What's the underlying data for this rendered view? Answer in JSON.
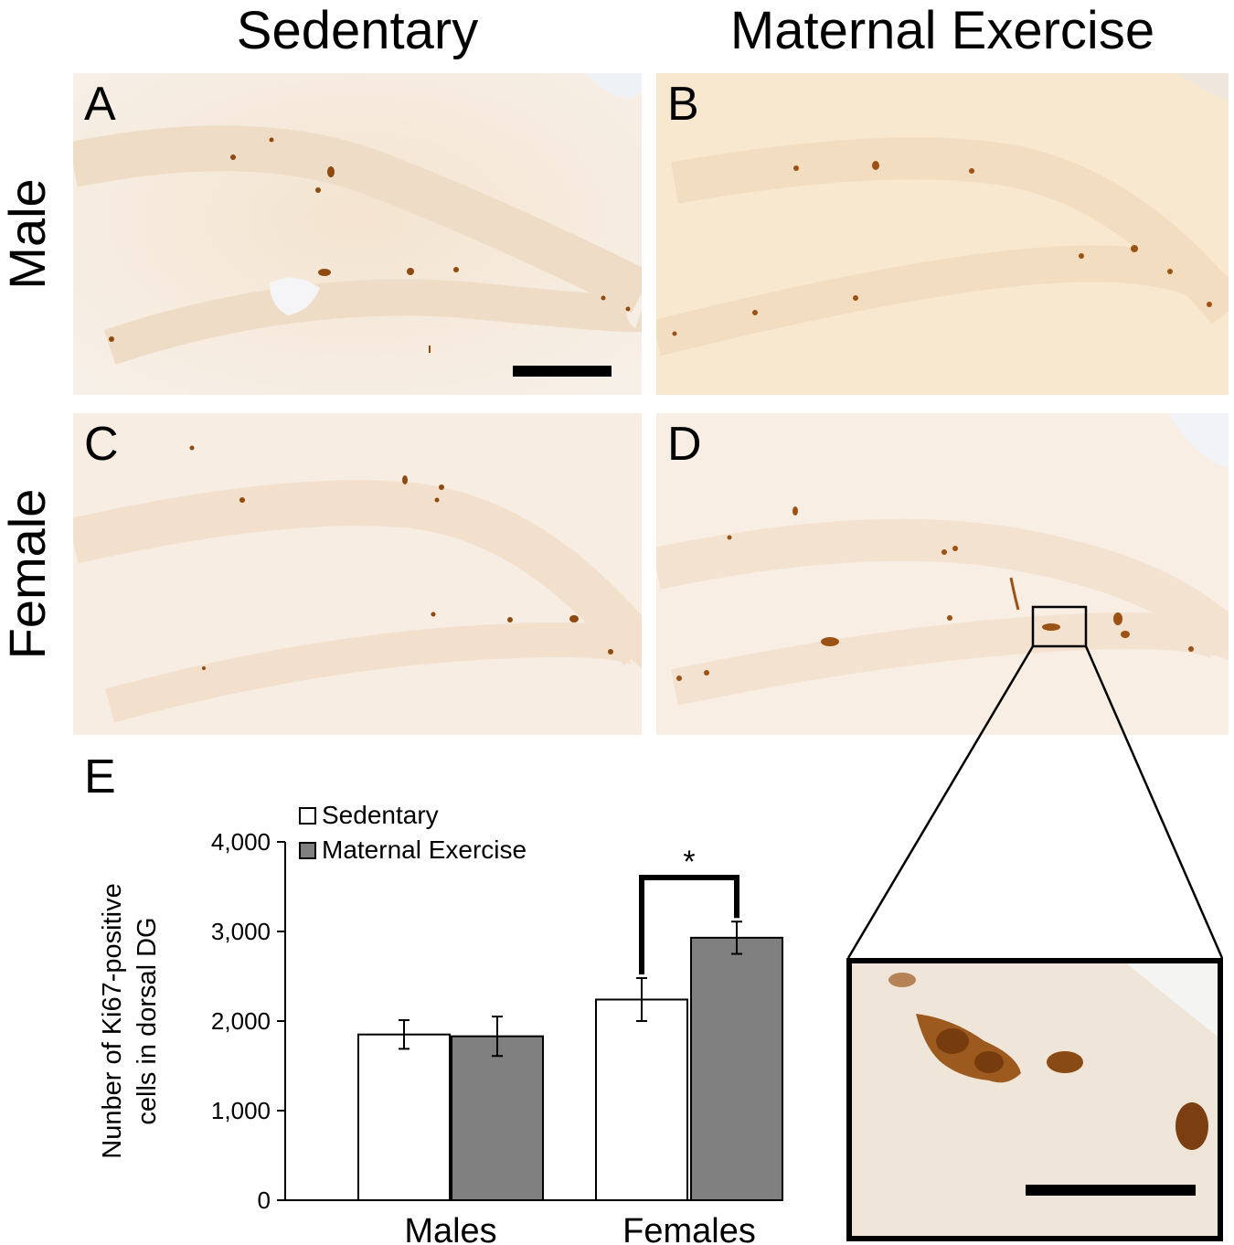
{
  "columns": [
    "Sedentary",
    "Maternal Exercise"
  ],
  "rows": [
    "Male",
    "Female"
  ],
  "panels": [
    "A",
    "B",
    "C",
    "D",
    "E"
  ],
  "chart_data": {
    "type": "bar",
    "ylabel_line1": "Nunber of Ki67-positive",
    "ylabel_line2": "cells in dorsal DG",
    "categories": [
      "Males",
      "Females"
    ],
    "ylim": [
      0,
      4000
    ],
    "yticks": [
      0,
      1000,
      2000,
      3000,
      4000
    ],
    "ytick_labels": [
      "0",
      "1,000",
      "2,000",
      "3,000",
      "4,000"
    ],
    "legend_position": "top-left",
    "series": [
      {
        "name": "Sedentary",
        "color": "#ffffff",
        "values": [
          1850,
          2240
        ],
        "errors": [
          160,
          240
        ]
      },
      {
        "name": "Maternal Exercise",
        "color": "#808080",
        "values": [
          1830,
          2930
        ],
        "errors": [
          220,
          180
        ]
      }
    ],
    "significance": {
      "label": "*",
      "category": "Females"
    }
  },
  "colors": {
    "tissue_bg": "#f7eadb",
    "stain": "#9a4f12"
  }
}
